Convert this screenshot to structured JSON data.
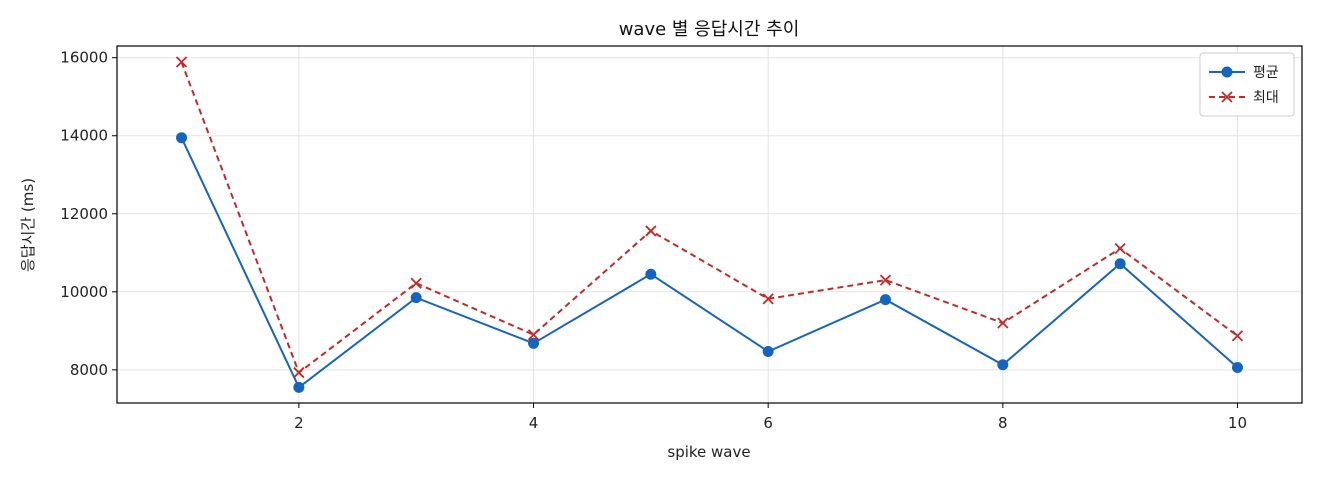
{
  "chart_data": {
    "type": "line",
    "title": "wave 별 응답시간 추이",
    "xlabel": "spike wave",
    "ylabel": "응답시간 (ms)",
    "x": [
      1,
      2,
      3,
      4,
      5,
      6,
      7,
      8,
      9,
      10
    ],
    "xlim": [
      0.45,
      10.55
    ],
    "ylim": [
      7150,
      16300
    ],
    "xticks": [
      2,
      4,
      6,
      8,
      10
    ],
    "yticks": [
      8000,
      10000,
      12000,
      14000,
      16000
    ],
    "grid": true,
    "legend_position": "top-right",
    "series": [
      {
        "name": "평균",
        "values": [
          13950,
          7550,
          9850,
          8680,
          10450,
          8470,
          9800,
          8130,
          10720,
          8060
        ],
        "color": "#1565c0",
        "line_style": "solid",
        "marker": "circle"
      },
      {
        "name": "최대",
        "values": [
          15890,
          7930,
          10220,
          8900,
          11560,
          9820,
          10300,
          9200,
          11110,
          8870
        ],
        "color": "#c62828",
        "line_style": "dashed",
        "marker": "x"
      }
    ]
  }
}
